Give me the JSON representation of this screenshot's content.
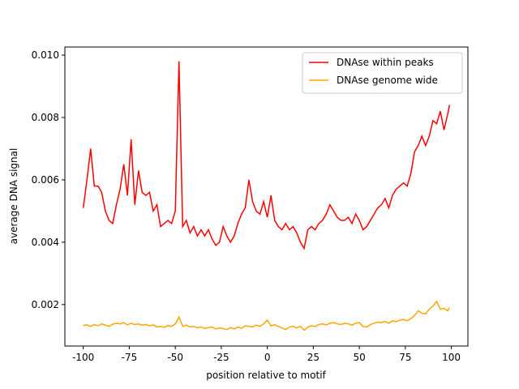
{
  "chart_data": {
    "type": "line",
    "xlabel": "position relative to motif",
    "ylabel": "average DNA signal",
    "x": [
      -100,
      -98,
      -96,
      -94,
      -92,
      -90,
      -88,
      -86,
      -84,
      -82,
      -80,
      -78,
      -76,
      -74,
      -72,
      -70,
      -68,
      -66,
      -64,
      -62,
      -60,
      -58,
      -56,
      -54,
      -52,
      -50,
      -48,
      -46,
      -44,
      -42,
      -40,
      -38,
      -36,
      -34,
      -32,
      -30,
      -28,
      -26,
      -24,
      -22,
      -20,
      -18,
      -16,
      -14,
      -12,
      -10,
      -8,
      -6,
      -4,
      -2,
      0,
      2,
      4,
      6,
      8,
      10,
      12,
      14,
      16,
      18,
      20,
      22,
      24,
      26,
      28,
      30,
      32,
      34,
      36,
      38,
      40,
      42,
      44,
      46,
      48,
      50,
      52,
      54,
      56,
      58,
      60,
      62,
      64,
      66,
      68,
      70,
      72,
      74,
      76,
      78,
      80,
      82,
      84,
      86,
      88,
      90,
      92,
      94,
      96,
      98,
      99
    ],
    "series": [
      {
        "name": "DNAse within peaks",
        "color": "#ff0000",
        "values": [
          0.0051,
          0.006,
          0.007,
          0.0058,
          0.0058,
          0.0056,
          0.005,
          0.0047,
          0.0046,
          0.0052,
          0.0057,
          0.0065,
          0.0055,
          0.0073,
          0.0052,
          0.0063,
          0.0056,
          0.0055,
          0.0056,
          0.005,
          0.0052,
          0.0045,
          0.0046,
          0.0047,
          0.0046,
          0.005,
          0.0098,
          0.0045,
          0.0047,
          0.0043,
          0.0045,
          0.0042,
          0.0044,
          0.0042,
          0.0044,
          0.0041,
          0.0039,
          0.004,
          0.0045,
          0.0042,
          0.004,
          0.0042,
          0.0046,
          0.0049,
          0.0051,
          0.006,
          0.0053,
          0.005,
          0.0049,
          0.0053,
          0.0048,
          0.0055,
          0.0047,
          0.0045,
          0.0044,
          0.0046,
          0.0044,
          0.0045,
          0.0043,
          0.004,
          0.0038,
          0.0044,
          0.0045,
          0.0044,
          0.0046,
          0.0047,
          0.0049,
          0.0052,
          0.005,
          0.0048,
          0.0047,
          0.0047,
          0.0048,
          0.0046,
          0.0049,
          0.0047,
          0.0044,
          0.0045,
          0.0047,
          0.0049,
          0.0051,
          0.0052,
          0.0054,
          0.0051,
          0.0055,
          0.0057,
          0.0058,
          0.0059,
          0.0058,
          0.0062,
          0.0069,
          0.0071,
          0.0074,
          0.0071,
          0.0074,
          0.0079,
          0.0078,
          0.0082,
          0.0076,
          0.0081,
          0.0084
        ]
      },
      {
        "name": "DNAse genome wide",
        "color": "#ffa500",
        "values": [
          0.00133,
          0.00135,
          0.0013,
          0.00136,
          0.00132,
          0.00138,
          0.00134,
          0.0013,
          0.00137,
          0.0014,
          0.00138,
          0.00142,
          0.00135,
          0.0014,
          0.00136,
          0.00138,
          0.00134,
          0.00136,
          0.00132,
          0.00135,
          0.00128,
          0.0013,
          0.00127,
          0.00133,
          0.0013,
          0.00138,
          0.0016,
          0.0013,
          0.00134,
          0.00128,
          0.0013,
          0.00126,
          0.00128,
          0.00124,
          0.00126,
          0.00128,
          0.00122,
          0.00125,
          0.00123,
          0.0012,
          0.00126,
          0.00122,
          0.00128,
          0.00124,
          0.00132,
          0.0013,
          0.00128,
          0.00134,
          0.0013,
          0.00138,
          0.0015,
          0.00132,
          0.00135,
          0.0013,
          0.00125,
          0.0012,
          0.00128,
          0.0013,
          0.00125,
          0.0013,
          0.00118,
          0.00128,
          0.00132,
          0.0013,
          0.00136,
          0.00138,
          0.00135,
          0.0014,
          0.00142,
          0.00138,
          0.00136,
          0.0014,
          0.00138,
          0.00134,
          0.0014,
          0.00142,
          0.0013,
          0.00128,
          0.00136,
          0.0014,
          0.00144,
          0.00142,
          0.00146,
          0.0014,
          0.00148,
          0.00145,
          0.0015,
          0.00152,
          0.00148,
          0.00155,
          0.00165,
          0.0018,
          0.00172,
          0.0017,
          0.00185,
          0.00195,
          0.0021,
          0.00185,
          0.00188,
          0.0018,
          0.0019
        ]
      }
    ],
    "xlim": [
      -110,
      109
    ],
    "ylim": [
      0.00067,
      0.01026
    ],
    "xticks": [
      -100,
      -75,
      -50,
      -25,
      0,
      25,
      50,
      75,
      100
    ],
    "yticks": [
      0.002,
      0.004,
      0.006,
      0.008,
      {
        "value": 0.01,
        "label": "0.010"
      }
    ],
    "legend": "upper right"
  }
}
